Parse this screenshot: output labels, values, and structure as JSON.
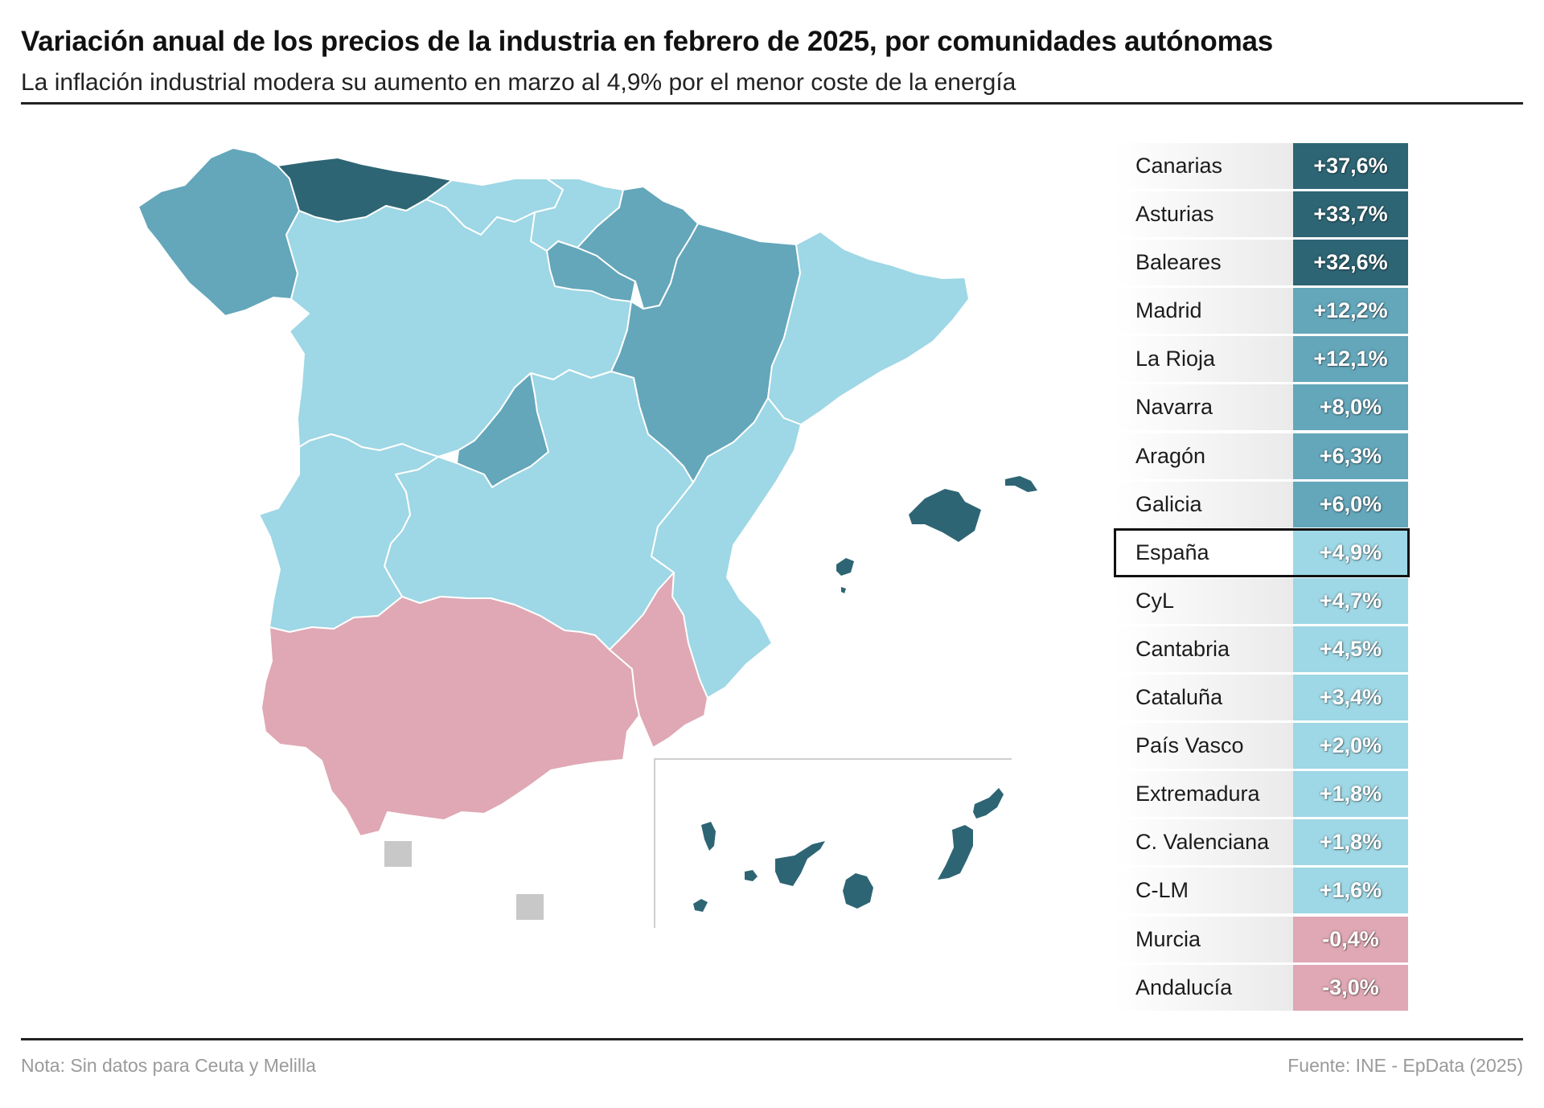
{
  "title": "Variación anual de los precios de la industria en febrero de 2025, por comunidades autónomas",
  "subtitle": "La inflación industrial modera su aumento en marzo al 4,9% por el menor coste de la energía",
  "note": "Nota: Sin datos para Ceuta y Melilla",
  "source": "Fuente: INE - EpData (2025)",
  "colors": {
    "dark_teal": "#2e6574",
    "mid_teal": "#64a6ba",
    "light_blue": "#9ed7e5",
    "pink": "#dfa8b4",
    "no_data": "#c8c8c8"
  },
  "ranking": [
    {
      "name": "Canarias",
      "value": "+37,6%",
      "number": 37.6,
      "color": "#2e6574"
    },
    {
      "name": "Asturias",
      "value": "+33,7%",
      "number": 33.7,
      "color": "#2e6574"
    },
    {
      "name": "Baleares",
      "value": "+32,6%",
      "number": 32.6,
      "color": "#2e6574"
    },
    {
      "name": "Madrid",
      "value": "+12,2%",
      "number": 12.2,
      "color": "#64a6ba"
    },
    {
      "name": "La Rioja",
      "value": "+12,1%",
      "number": 12.1,
      "color": "#64a6ba"
    },
    {
      "name": "Navarra",
      "value": "+8,0%",
      "number": 8.0,
      "color": "#64a6ba"
    },
    {
      "name": "Aragón",
      "value": "+6,3%",
      "number": 6.3,
      "color": "#64a6ba"
    },
    {
      "name": "Galicia",
      "value": "+6,0%",
      "number": 6.0,
      "color": "#64a6ba"
    },
    {
      "name": "España",
      "value": "+4,9%",
      "number": 4.9,
      "color": "#9ed7e5",
      "highlight": true
    },
    {
      "name": "CyL",
      "value": "+4,7%",
      "number": 4.7,
      "color": "#9ed7e5"
    },
    {
      "name": "Cantabria",
      "value": "+4,5%",
      "number": 4.5,
      "color": "#9ed7e5"
    },
    {
      "name": "Cataluña",
      "value": "+3,4%",
      "number": 3.4,
      "color": "#9ed7e5"
    },
    {
      "name": "País Vasco",
      "value": "+2,0%",
      "number": 2.0,
      "color": "#9ed7e5"
    },
    {
      "name": "Extremadura",
      "value": "+1,8%",
      "number": 1.8,
      "color": "#9ed7e5"
    },
    {
      "name": "C. Valenciana",
      "value": "+1,8%",
      "number": 1.8,
      "color": "#9ed7e5"
    },
    {
      "name": "C-LM",
      "value": "+1,6%",
      "number": 1.6,
      "color": "#9ed7e5"
    },
    {
      "name": "Murcia",
      "value": "-0,4%",
      "number": -0.4,
      "color": "#dfa8b4"
    },
    {
      "name": "Andalucía",
      "value": "-3,0%",
      "number": -3.0,
      "color": "#dfa8b4"
    }
  ]
}
